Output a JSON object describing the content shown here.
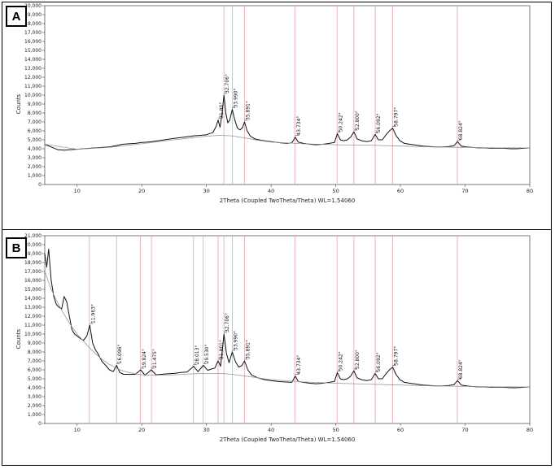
{
  "chart_data": [
    {
      "panel": "A",
      "type": "line",
      "xlabel": "2Theta (Coupled TwoTheta/Theta) WL=1.54060",
      "ylabel": "Counts",
      "xlim": [
        5,
        80
      ],
      "ylim": [
        0,
        20000
      ],
      "x_ticks": [
        10,
        20,
        30,
        40,
        50,
        60,
        70,
        80
      ],
      "y_ticks": [
        0,
        1000,
        2000,
        3000,
        4000,
        5000,
        6000,
        7000,
        8000,
        9000,
        10000,
        11000,
        12000,
        13000,
        14000,
        15000,
        16000,
        17000,
        18000,
        19000,
        20000
      ],
      "y_tick_labels": [
        "0",
        "1,000",
        "2,000",
        "3,000",
        "4,000",
        "5,000",
        "6,000",
        "7,000",
        "8,000",
        "9,000",
        "10,000",
        "11,000",
        "12,000",
        "13,000",
        "14,000",
        "15,000",
        "16,000",
        "17,000",
        "18,000",
        "19,000",
        "20,000"
      ],
      "reference_lines": [
        32.7,
        34.0,
        35.9,
        43.7,
        50.2,
        52.8,
        56.1,
        58.8,
        68.8
      ],
      "peaks": [
        {
          "x": 31.8,
          "y": 7200,
          "label": "31.80°"
        },
        {
          "x": 32.706,
          "y": 10000,
          "label": "32.706°"
        },
        {
          "x": 33.99,
          "y": 8400,
          "label": "33.990°"
        },
        {
          "x": 35.891,
          "y": 7000,
          "label": "35.891°"
        },
        {
          "x": 43.734,
          "y": 5300,
          "label": "43.734°"
        },
        {
          "x": 50.242,
          "y": 5700,
          "label": "50.242°"
        },
        {
          "x": 52.8,
          "y": 5900,
          "label": "52.800°"
        },
        {
          "x": 56.092,
          "y": 5600,
          "label": "56.092°"
        },
        {
          "x": 58.797,
          "y": 6300,
          "label": "58.797°"
        },
        {
          "x": 68.824,
          "y": 4800,
          "label": "68.824°"
        }
      ],
      "series": [
        {
          "role": "pattern",
          "x": [
            5,
            6,
            7,
            8,
            9,
            10,
            11,
            12,
            13,
            14,
            15,
            16,
            17,
            18,
            19,
            20,
            21,
            22,
            23,
            24,
            25,
            26,
            27,
            28,
            29,
            30,
            30.5,
            31,
            31.5,
            31.8,
            32.1,
            32.4,
            32.706,
            33.0,
            33.3,
            33.6,
            33.99,
            34.4,
            34.8,
            35.2,
            35.6,
            35.891,
            36.3,
            36.8,
            37.5,
            38.5,
            39.5,
            40.5,
            41.5,
            42.5,
            43.2,
            43.734,
            44.2,
            45,
            46,
            47,
            48,
            49,
            49.8,
            50.242,
            50.7,
            51.2,
            51.8,
            52.3,
            52.8,
            53.3,
            54,
            54.8,
            55.5,
            56.092,
            56.6,
            57.2,
            57.8,
            58.3,
            58.797,
            59.3,
            59.9,
            60.6,
            61.5,
            62.5,
            63.5,
            64.5,
            65.5,
            66.5,
            67.5,
            68.3,
            68.824,
            69.4,
            70.2,
            71,
            72,
            73,
            74,
            75,
            76,
            77,
            78,
            79,
            80
          ],
          "y": [
            4500,
            4200,
            3900,
            3850,
            3900,
            3950,
            4000,
            4050,
            4100,
            4150,
            4200,
            4350,
            4500,
            4550,
            4600,
            4700,
            4750,
            4850,
            4950,
            5050,
            5150,
            5250,
            5350,
            5450,
            5500,
            5550,
            5700,
            5800,
            6500,
            7200,
            6400,
            7800,
            10000,
            8000,
            6900,
            7200,
            8400,
            7200,
            6300,
            6100,
            6400,
            7000,
            6000,
            5400,
            5100,
            4950,
            4850,
            4750,
            4650,
            4600,
            4650,
            5300,
            4750,
            4600,
            4500,
            4450,
            4500,
            4600,
            4700,
            5700,
            5000,
            4900,
            5000,
            5300,
            5900,
            5100,
            4900,
            4800,
            4900,
            5600,
            5000,
            5000,
            5600,
            6000,
            6300,
            5500,
            4900,
            4600,
            4500,
            4400,
            4300,
            4250,
            4200,
            4200,
            4250,
            4350,
            4800,
            4300,
            4200,
            4150,
            4100,
            4100,
            4050,
            4050,
            4050,
            4000,
            4000,
            4050,
            4100
          ]
        },
        {
          "role": "background",
          "x": [
            5,
            10,
            15,
            20,
            25,
            28,
            30,
            32,
            34,
            36,
            38,
            40,
            45,
            50,
            55,
            60,
            65,
            70,
            75,
            80
          ],
          "y": [
            4500,
            3950,
            4150,
            4550,
            5000,
            5250,
            5400,
            5500,
            5450,
            5200,
            4950,
            4750,
            4550,
            4450,
            4400,
            4300,
            4200,
            4150,
            4100,
            4100
          ]
        }
      ]
    },
    {
      "panel": "B",
      "type": "line",
      "xlabel": "2Theta (Coupled TwoTheta/Theta) WL=1.54060",
      "ylabel": "Counts",
      "xlim": [
        5,
        80
      ],
      "ylim": [
        0,
        21000
      ],
      "x_ticks": [
        10,
        20,
        30,
        40,
        50,
        60,
        70,
        80
      ],
      "y_ticks": [
        0,
        1000,
        2000,
        3000,
        4000,
        5000,
        6000,
        7000,
        8000,
        9000,
        10000,
        11000,
        12000,
        13000,
        14000,
        15000,
        16000,
        17000,
        18000,
        19000,
        20000,
        21000
      ],
      "y_tick_labels": [
        "0",
        "1,000",
        "2,000",
        "3,000",
        "4,000",
        "5,000",
        "6,000",
        "7,000",
        "8,000",
        "9,000",
        "10,000",
        "11,000",
        "12,000",
        "13,000",
        "14,000",
        "15,000",
        "16,000",
        "17,000",
        "18,000",
        "19,000",
        "20,000",
        "21,000"
      ],
      "reference_lines": [
        11.9,
        16.1,
        19.8,
        21.5,
        28.0,
        29.5,
        31.8,
        32.7,
        34.0,
        35.9,
        43.7,
        50.2,
        52.8,
        56.1,
        58.8,
        68.8
      ],
      "peaks": [
        {
          "x": 11.963,
          "y": 11000,
          "label": "11.963°"
        },
        {
          "x": 16.096,
          "y": 6500,
          "label": "16.096°"
        },
        {
          "x": 19.824,
          "y": 6000,
          "label": "19.824°"
        },
        {
          "x": 21.475,
          "y": 6000,
          "label": "21.475°"
        },
        {
          "x": 28.013,
          "y": 6400,
          "label": "28.013°"
        },
        {
          "x": 29.53,
          "y": 6500,
          "label": "29.530°"
        },
        {
          "x": 31.8,
          "y": 7000,
          "label": "31.801°"
        },
        {
          "x": 32.706,
          "y": 10000,
          "label": "32.706°"
        },
        {
          "x": 33.99,
          "y": 8000,
          "label": "33.990°"
        },
        {
          "x": 35.891,
          "y": 7000,
          "label": "35.891°"
        },
        {
          "x": 43.734,
          "y": 5300,
          "label": "43.734°"
        },
        {
          "x": 50.242,
          "y": 5700,
          "label": "50.242°"
        },
        {
          "x": 52.8,
          "y": 5900,
          "label": "52.800°"
        },
        {
          "x": 56.092,
          "y": 5600,
          "label": "56.092°"
        },
        {
          "x": 58.797,
          "y": 6300,
          "label": "58.797°"
        },
        {
          "x": 68.824,
          "y": 4800,
          "label": "68.824°"
        }
      ],
      "series": [
        {
          "role": "pattern",
          "x": [
            5,
            5.3,
            5.6,
            6,
            6.4,
            6.8,
            7.2,
            7.6,
            8.0,
            8.4,
            8.8,
            9.2,
            9.6,
            10,
            10.5,
            11,
            11.5,
            11.963,
            12.4,
            12.8,
            13.3,
            13.8,
            14.4,
            15,
            15.6,
            16.096,
            16.6,
            17.2,
            18,
            19,
            19.824,
            20.5,
            21.475,
            22.2,
            23,
            24,
            25,
            26,
            27,
            28.013,
            28.7,
            29.53,
            30.2,
            30.8,
            31.3,
            31.8,
            32.2,
            32.706,
            33.1,
            33.5,
            33.99,
            34.5,
            35,
            35.5,
            35.891,
            36.4,
            37,
            38,
            39,
            40,
            41,
            42,
            43.2,
            43.734,
            44.2,
            45,
            46,
            47,
            48,
            49,
            49.8,
            50.242,
            50.7,
            51.2,
            51.8,
            52.3,
            52.8,
            53.3,
            54,
            54.8,
            55.5,
            56.092,
            56.6,
            57.2,
            57.8,
            58.3,
            58.797,
            59.3,
            59.9,
            60.6,
            61.5,
            62.5,
            63.5,
            64.5,
            65.5,
            66.5,
            67.5,
            68.3,
            68.824,
            69.4,
            70.2,
            71,
            72,
            73,
            74,
            75,
            76,
            77,
            78,
            79,
            80
          ],
          "y": [
            19000,
            17500,
            19500,
            16000,
            14200,
            13300,
            13000,
            12800,
            14200,
            13600,
            12000,
            10500,
            10000,
            9800,
            9500,
            9300,
            9800,
            11000,
            9000,
            8300,
            7700,
            7000,
            6500,
            6000,
            5800,
            6500,
            5700,
            5500,
            5500,
            5500,
            6000,
            5400,
            6000,
            5450,
            5500,
            5550,
            5600,
            5700,
            5750,
            6400,
            5800,
            6500,
            5950,
            6100,
            6200,
            7000,
            6400,
            10000,
            7800,
            6800,
            8000,
            6900,
            6300,
            6500,
            7000,
            6000,
            5400,
            5100,
            4900,
            4800,
            4700,
            4650,
            4600,
            5300,
            4700,
            4600,
            4500,
            4450,
            4500,
            4600,
            4700,
            5700,
            5000,
            4900,
            5000,
            5300,
            5900,
            5100,
            4900,
            4800,
            4900,
            5600,
            5000,
            5000,
            5600,
            6000,
            6300,
            5500,
            4900,
            4600,
            4500,
            4400,
            4300,
            4250,
            4200,
            4200,
            4250,
            4350,
            4800,
            4300,
            4200,
            4150,
            4100,
            4100,
            4050,
            4050,
            4050,
            4000,
            4000,
            4050,
            4100
          ]
        },
        {
          "role": "background",
          "x": [
            5,
            6,
            7,
            8,
            9,
            10,
            11,
            12,
            13,
            14,
            15,
            16,
            17,
            18,
            20,
            22,
            25,
            28,
            30,
            32,
            34,
            36,
            38,
            40,
            45,
            50,
            55,
            60,
            65,
            70,
            75,
            80
          ],
          "y": [
            17000,
            15000,
            13500,
            12200,
            11000,
            10000,
            9200,
            8400,
            7700,
            7100,
            6600,
            6200,
            5900,
            5700,
            5450,
            5400,
            5450,
            5550,
            5600,
            5600,
            5500,
            5300,
            5100,
            4900,
            4650,
            4500,
            4400,
            4300,
            4200,
            4150,
            4100,
            4100
          ]
        }
      ]
    }
  ],
  "panels": {
    "a": {
      "label": "A"
    },
    "b": {
      "label": "B"
    }
  },
  "colors": {
    "pattern": "#111111",
    "background": "#999999",
    "reference": "#e8a6a6",
    "axis": "#444444"
  }
}
